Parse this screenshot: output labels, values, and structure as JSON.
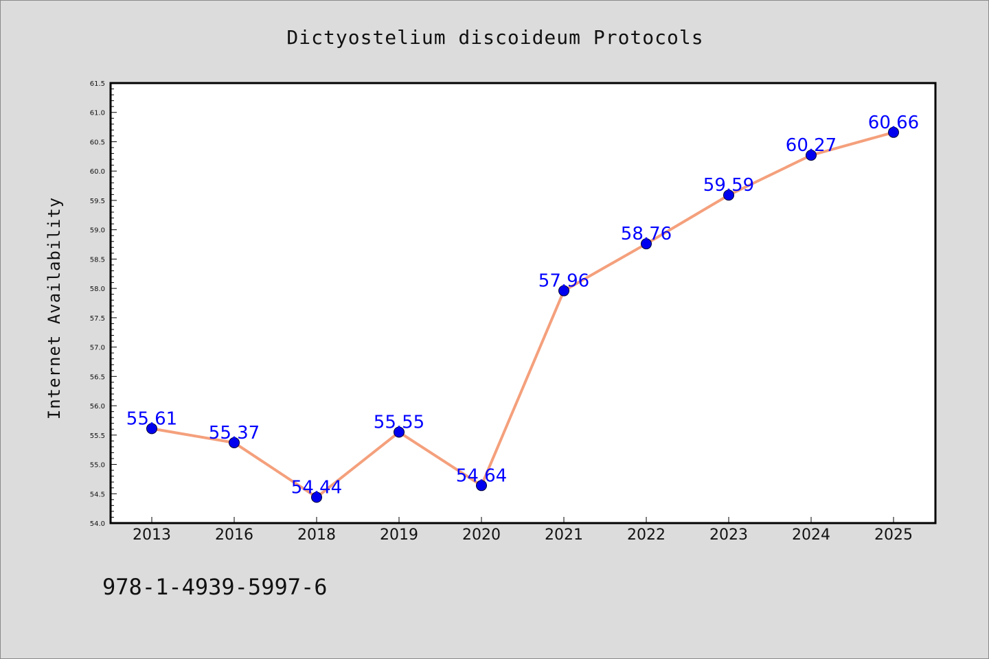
{
  "chart_data": {
    "type": "line",
    "title": "Dictyostelium discoideum Protocols",
    "xlabel": "",
    "ylabel": "Internet Availability",
    "categories": [
      "2013",
      "2016",
      "2018",
      "2019",
      "2020",
      "2021",
      "2022",
      "2023",
      "2024",
      "2025"
    ],
    "series": [
      {
        "values": [
          55.61,
          55.37,
          54.44,
          55.55,
          54.64,
          57.96,
          58.76,
          59.59,
          60.27,
          60.66
        ],
        "line_color": "#f4a07c",
        "marker_color": "#0000ee"
      }
    ],
    "data_labels": [
      "55.61",
      "55.37",
      "54.44",
      "55.55",
      "54.64",
      "57.96",
      "58.76",
      "59.59",
      "60.27",
      "60.66"
    ],
    "ylim": [
      54.0,
      61.5
    ],
    "yticks": [
      "54.0",
      "54.5",
      "55.0",
      "55.5",
      "56.0",
      "56.5",
      "57.0",
      "57.5",
      "58.0",
      "58.5",
      "59.0",
      "59.5",
      "60.0",
      "60.5",
      "61.0",
      "61.5"
    ],
    "grid": false,
    "label_color": "#0000ff",
    "annotation": "978-1-4939-5997-6"
  }
}
